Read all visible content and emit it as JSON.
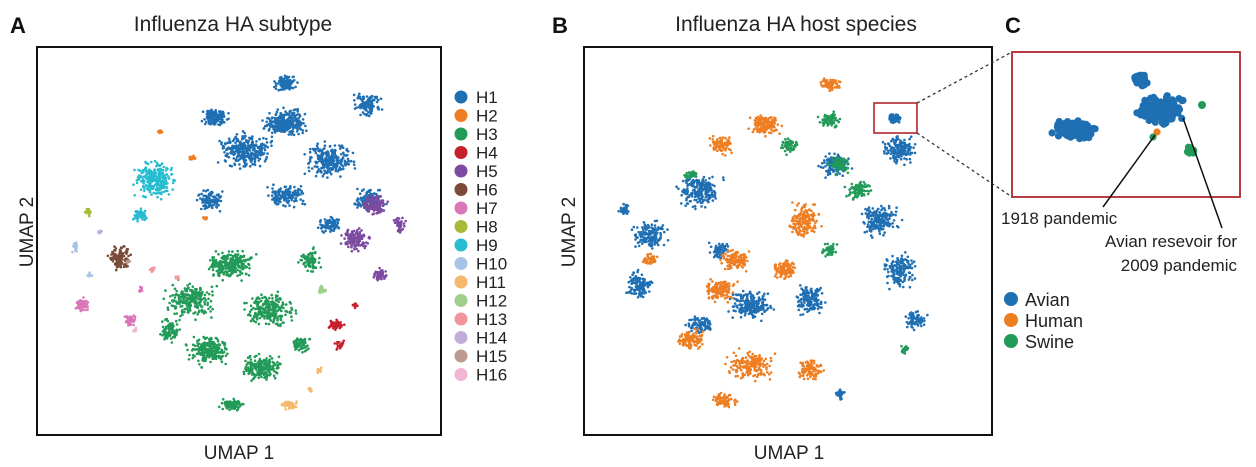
{
  "panel_labels": [
    "A",
    "B",
    "C"
  ],
  "colors": {
    "H1": "#1f6fb3",
    "H2": "#ef7e22",
    "H3": "#229a58",
    "H4": "#c8202a",
    "H5": "#7c4aa0",
    "H6": "#7b4b3a",
    "H7": "#d977b8",
    "H8": "#a9b93a",
    "H9": "#27bccf",
    "H10": "#a9c3e6",
    "H11": "#f6b86a",
    "H12": "#9fd08b",
    "H13": "#f1969c",
    "H14": "#c1aed8",
    "H15": "#bc9a8f",
    "H16": "#f2b5d3",
    "Avian": "#1f6fb3",
    "Human": "#ef7e22",
    "Swine": "#229a58",
    "inset_box": "#b0262c"
  },
  "chart_data": [
    {
      "type": "scatter",
      "panel": "A",
      "title": "Influenza HA subtype",
      "xlabel": "UMAP 1",
      "ylabel": "UMAP 2",
      "legend_position": "right",
      "series": [
        {
          "name": "H1"
        },
        {
          "name": "H2"
        },
        {
          "name": "H3"
        },
        {
          "name": "H4"
        },
        {
          "name": "H5"
        },
        {
          "name": "H6"
        },
        {
          "name": "H7"
        },
        {
          "name": "H8"
        },
        {
          "name": "H9"
        },
        {
          "name": "H10"
        },
        {
          "name": "H11"
        },
        {
          "name": "H12"
        },
        {
          "name": "H13"
        },
        {
          "name": "H14"
        },
        {
          "name": "H15"
        },
        {
          "name": "H16"
        }
      ]
    },
    {
      "type": "scatter",
      "panel": "B",
      "title": "Influenza HA host species",
      "xlabel": "UMAP 1",
      "ylabel": "UMAP 2",
      "legend_position": "bottom-right",
      "series": [
        {
          "name": "Avian"
        },
        {
          "name": "Human"
        },
        {
          "name": "Swine"
        }
      ]
    },
    {
      "type": "scatter",
      "panel": "C",
      "title": "",
      "annotations": [
        "1918 pandemic",
        "Avian resevoir for",
        "2009 pandemic"
      ],
      "legend": [
        "Avian",
        "Human",
        "Swine"
      ]
    }
  ]
}
